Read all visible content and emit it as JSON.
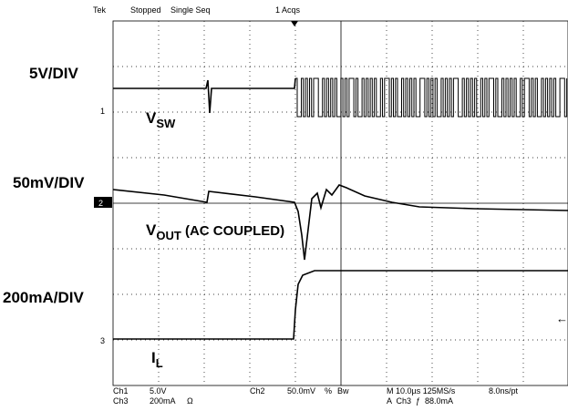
{
  "header": {
    "brand": "Tek",
    "state": "Stopped",
    "mode": "Single Seq",
    "acquisitions": "1 Acqs"
  },
  "scales": [
    "5V/DIV",
    "50mV/DIV",
    "200mA/DIV"
  ],
  "channel_markers": [
    "1",
    "2",
    "3"
  ],
  "traces": {
    "vsw": {
      "main": "V",
      "sub": "SW"
    },
    "vout": {
      "main": "V",
      "sub": "OUT",
      "note": " (AC COUPLED)"
    },
    "il": {
      "main": "I",
      "sub": "L"
    }
  },
  "footer": {
    "ch1": "Ch1",
    "ch1_scale": "5.0V",
    "ch3": "Ch3",
    "ch3_scale": "200mA",
    "ch3_impedance": "Ω",
    "ch2": "Ch2",
    "ch2_scale": "50.0mV",
    "ch2_suffix": "%",
    "bw": "Bw",
    "timebase": "M 10.0µs 125MS/s",
    "resolution": "8.0ns/pt",
    "trigger": "A  Ch3  ƒ  88.0mA"
  }
}
